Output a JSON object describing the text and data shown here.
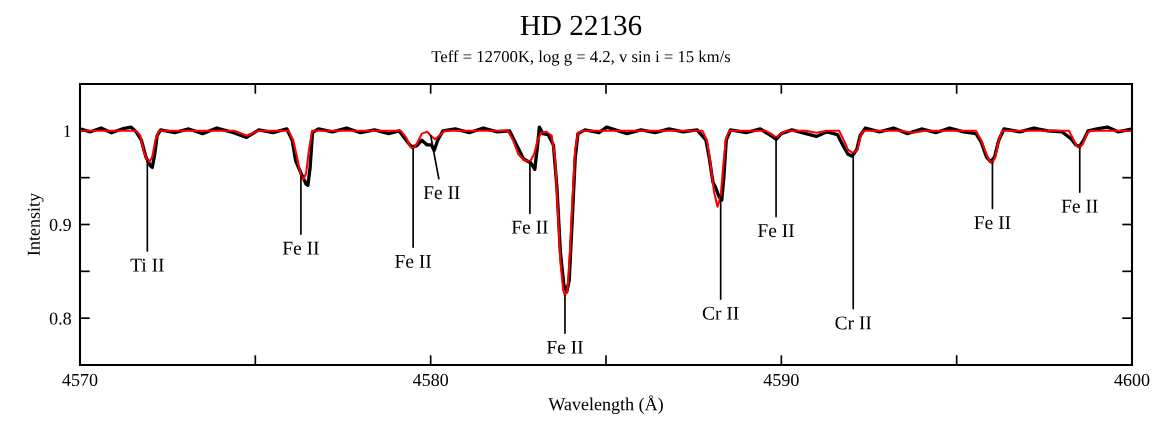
{
  "chart_data": {
    "type": "line",
    "title": "HD 22136",
    "subtitle": "Teff = 12700K, log g = 4.2, v sin i = 15 km/s",
    "xlabel": "Wavelength (Å)",
    "ylabel": "Intensity",
    "xlim": [
      4570,
      4600
    ],
    "ylim": [
      0.75,
      1.05
    ],
    "xticks": [
      4570,
      {
        "value": 4575,
        "label": null
      },
      4580,
      {
        "value": 4585,
        "label": null
      },
      4590,
      {
        "value": 4595,
        "label": null
      },
      4600
    ],
    "yticks": [
      0.8,
      {
        "value": 0.85,
        "label": null
      },
      0.9,
      {
        "value": 0.95,
        "label": null
      },
      1
    ],
    "grid": false,
    "legend": false,
    "marker": "none",
    "line_style": "solid",
    "series": [
      {
        "color": "#000000",
        "x": [
          4570.0,
          4570.3,
          4570.6,
          4570.9,
          4571.2,
          4571.45,
          4571.6,
          4571.75,
          4571.88,
          4572.0,
          4572.06,
          4572.13,
          4572.2,
          4572.3,
          4572.7,
          4573.1,
          4573.5,
          4573.9,
          4574.3,
          4574.75,
          4575.1,
          4575.5,
          4575.9,
          4576.05,
          4576.15,
          4576.3,
          4576.45,
          4576.5,
          4576.56,
          4576.63,
          4576.8,
          4577.2,
          4577.6,
          4578.0,
          4578.4,
          4578.8,
          4579.1,
          4579.3,
          4579.45,
          4579.6,
          4579.75,
          4579.9,
          4580.02,
          4580.1,
          4580.2,
          4580.35,
          4580.7,
          4581.1,
          4581.5,
          4581.9,
          4582.25,
          4582.45,
          4582.65,
          4582.85,
          4582.97,
          4583.05,
          4583.1,
          4583.2,
          4583.35,
          4583.5,
          4583.6,
          4583.7,
          4583.8,
          4583.88,
          4583.95,
          4584.03,
          4584.12,
          4584.2,
          4584.4,
          4584.8,
          4585.02,
          4585.6,
          4586.0,
          4586.4,
          4586.8,
          4587.2,
          4587.6,
          4587.85,
          4587.95,
          4588.05,
          4588.12,
          4588.22,
          4588.3,
          4588.36,
          4588.43,
          4588.55,
          4589.0,
          4589.4,
          4589.7,
          4589.85,
          4590.0,
          4590.3,
          4590.7,
          4591.0,
          4591.3,
          4591.6,
          4591.75,
          4591.9,
          4592.02,
          4592.15,
          4592.25,
          4592.4,
          4592.8,
          4593.2,
          4593.6,
          4594.0,
          4594.4,
          4594.8,
          4595.2,
          4595.55,
          4595.7,
          4595.85,
          4595.97,
          4596.08,
          4596.2,
          4596.35,
          4596.8,
          4597.2,
          4597.6,
          4598.0,
          4598.25,
          4598.4,
          4598.5,
          4598.62,
          4598.75,
          4599.0,
          4599.3,
          4599.6,
          4600.0
        ],
        "values": [
          1.002,
          0.999,
          1.003,
          0.998,
          1.002,
          1.004,
          0.999,
          0.99,
          0.972,
          0.963,
          0.961,
          0.975,
          0.995,
          1.001,
          0.998,
          1.002,
          0.997,
          1.003,
          0.999,
          0.993,
          1.001,
          0.998,
          1.002,
          0.99,
          0.968,
          0.955,
          0.943,
          0.942,
          0.96,
          0.998,
          1.002,
          0.999,
          1.003,
          0.998,
          1.001,
          0.997,
          1.0,
          0.99,
          0.983,
          0.984,
          0.99,
          0.985,
          0.985,
          0.979,
          0.99,
          1.0,
          1.002,
          0.998,
          1.003,
          0.999,
          1.0,
          0.985,
          0.97,
          0.966,
          0.959,
          0.985,
          1.004,
          0.997,
          0.996,
          0.985,
          0.94,
          0.87,
          0.835,
          0.828,
          0.84,
          0.9,
          0.97,
          0.997,
          1.001,
          0.998,
          1.004,
          0.997,
          1.001,
          0.998,
          1.002,
          0.999,
          1.001,
          0.99,
          0.97,
          0.945,
          0.94,
          0.93,
          0.926,
          0.95,
          0.99,
          1.001,
          0.998,
          1.002,
          0.995,
          0.991,
          0.997,
          1.001,
          0.997,
          0.994,
          0.999,
          0.996,
          0.985,
          0.975,
          0.973,
          0.98,
          0.995,
          1.003,
          0.999,
          1.003,
          0.997,
          1.002,
          0.998,
          1.003,
          0.999,
          0.997,
          0.988,
          0.972,
          0.967,
          0.972,
          0.99,
          1.002,
          0.999,
          1.003,
          1.0,
          0.999,
          0.992,
          0.985,
          0.983,
          0.99,
          1.0,
          1.002,
          1.004,
          0.999,
          1.002
        ]
      },
      {
        "color": "#ff0000",
        "x": [
          4570.0,
          4571.6,
          4571.72,
          4571.82,
          4571.92,
          4571.98,
          4572.06,
          4572.15,
          4572.25,
          4574.4,
          4574.75,
          4575.1,
          4575.95,
          4576.08,
          4576.2,
          4576.3,
          4576.37,
          4576.45,
          4576.53,
          4576.62,
          4579.15,
          4579.3,
          4579.42,
          4579.5,
          4579.6,
          4579.75,
          4579.9,
          4580.0,
          4580.12,
          4580.25,
          4580.4,
          4582.2,
          4582.35,
          4582.5,
          4582.65,
          4582.83,
          4582.95,
          4583.05,
          4583.15,
          4583.3,
          4583.45,
          4583.55,
          4583.62,
          4583.7,
          4583.78,
          4583.83,
          4583.9,
          4583.97,
          4584.05,
          4584.12,
          4584.2,
          4584.35,
          4587.75,
          4587.88,
          4587.98,
          4588.08,
          4588.18,
          4588.27,
          4588.35,
          4588.42,
          4588.52,
          4589.55,
          4589.7,
          4589.85,
          4590.0,
          4590.15,
          4590.7,
          4591.0,
          4591.3,
          4591.65,
          4591.78,
          4591.9,
          4592.05,
          4592.17,
          4592.26,
          4592.35,
          4593.4,
          4593.75,
          4594.1,
          4595.55,
          4595.7,
          4595.85,
          4595.95,
          4596.02,
          4596.1,
          4596.2,
          4596.3,
          4598.2,
          4598.3,
          4598.42,
          4598.51,
          4598.6,
          4598.7,
          4598.8,
          4600.0
        ],
        "values": [
          1.0,
          1.0,
          0.995,
          0.978,
          0.968,
          0.967,
          0.972,
          0.99,
          1.0,
          1.0,
          0.995,
          1.0,
          1.0,
          0.99,
          0.97,
          0.952,
          0.948,
          0.955,
          0.98,
          1.0,
          1.0,
          0.993,
          0.983,
          0.981,
          0.986,
          0.997,
          0.999,
          0.995,
          0.991,
          0.995,
          1.0,
          1.0,
          0.99,
          0.975,
          0.969,
          0.967,
          0.975,
          0.99,
          0.998,
          0.999,
          0.995,
          0.97,
          0.92,
          0.86,
          0.83,
          0.824,
          0.83,
          0.87,
          0.93,
          0.98,
          0.998,
          1.0,
          1.0,
          0.99,
          0.965,
          0.935,
          0.919,
          0.93,
          0.965,
          0.992,
          1.0,
          1.0,
          0.997,
          0.993,
          0.997,
          1.0,
          1.0,
          0.998,
          1.0,
          1.0,
          0.99,
          0.98,
          0.976,
          0.98,
          0.995,
          1.0,
          1.0,
          0.998,
          1.0,
          1.0,
          0.99,
          0.975,
          0.967,
          0.966,
          0.972,
          0.99,
          1.0,
          1.0,
          0.993,
          0.984,
          0.982,
          0.986,
          0.996,
          1.0,
          1.0
        ]
      }
    ],
    "annotations": [
      {
        "text": "Ti II",
        "x": 4571.92,
        "y": 0.968
      },
      {
        "text": "Fe II",
        "x": 4576.3,
        "y": 0.952
      },
      {
        "text": "Fe II",
        "x": 4579.5,
        "y": 0.981
      },
      {
        "text": "Fe II",
        "x": 4580.0,
        "y": 0.995
      },
      {
        "text": "Fe II",
        "x": 4582.83,
        "y": 0.967
      },
      {
        "text": "Fe II",
        "x": 4583.83,
        "y": 0.824
      },
      {
        "text": "Cr II",
        "x": 4588.27,
        "y": 0.93
      },
      {
        "text": "Fe II",
        "x": 4589.85,
        "y": 0.993
      },
      {
        "text": "Cr II",
        "x": 4592.05,
        "y": 0.976
      },
      {
        "text": "Fe II",
        "x": 4596.02,
        "y": 0.966
      },
      {
        "text": "Fe II",
        "x": 4598.51,
        "y": 0.982
      }
    ]
  }
}
